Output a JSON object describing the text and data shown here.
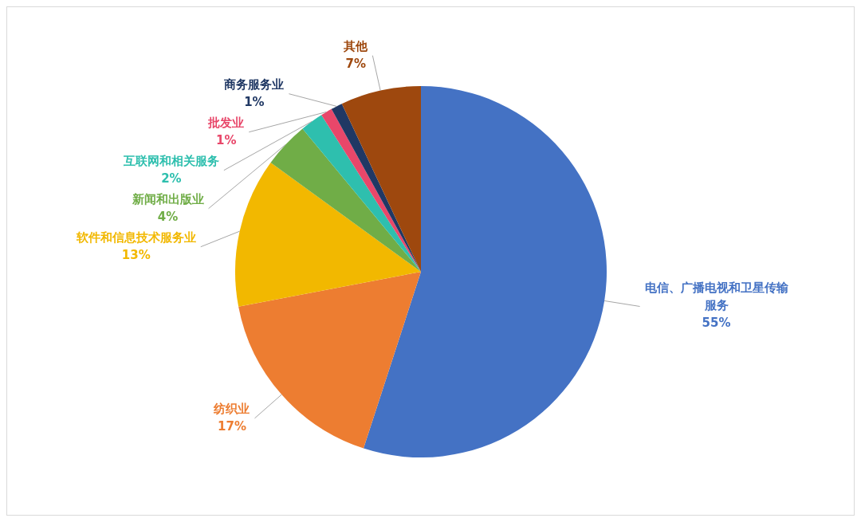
{
  "chart_data": {
    "type": "pie",
    "categories": [
      "电信、广播电视和卫星传输服务",
      "纺织业",
      "软件和信息技术服务业",
      "新闻和出版业",
      "互联网和相关服务",
      "批发业",
      "商务服务业",
      "其他"
    ],
    "values": [
      55,
      17,
      13,
      4,
      2,
      1,
      1,
      7
    ],
    "value_labels": [
      "55%",
      "17%",
      "13%",
      "4%",
      "2%",
      "1%",
      "1%",
      "7%"
    ],
    "colors": [
      "#4472c4",
      "#ed7d31",
      "#f2b800",
      "#70ad47",
      "#2ebfae",
      "#e8476a",
      "#203864",
      "#9e480e"
    ]
  }
}
